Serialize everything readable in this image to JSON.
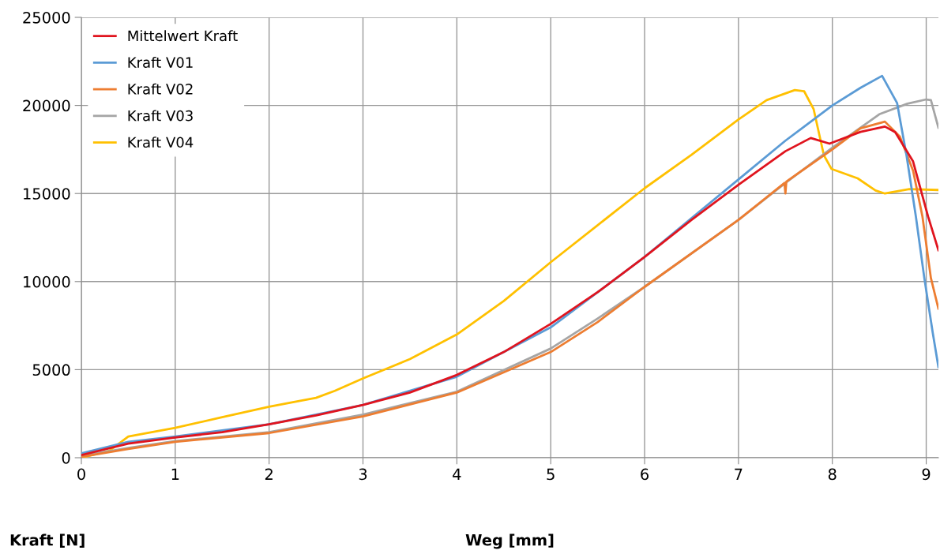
{
  "chart_data": {
    "type": "line",
    "xlabel": "Weg [mm]",
    "ylabel": "Kraft [N]",
    "xlim": [
      0,
      9.13
    ],
    "ylim": [
      0,
      25000
    ],
    "xticks": [
      0,
      1,
      2,
      3,
      4,
      5,
      6,
      7,
      8,
      9
    ],
    "yticks": [
      0,
      5000,
      10000,
      15000,
      20000,
      25000
    ],
    "grid": true,
    "legend": "top left",
    "marker": "none",
    "line_style": "solid",
    "series": [
      {
        "name": "Mittelwert Kraft",
        "color": "#e0141e",
        "x": [
          0,
          0.5,
          1,
          1.5,
          2,
          2.5,
          3,
          3.5,
          4,
          4.5,
          5,
          5.5,
          6,
          6.5,
          7,
          7.5,
          7.77,
          7.97,
          8.3,
          8.56,
          8.67,
          8.86,
          9.02,
          9.13
        ],
        "values": [
          150,
          800,
          1150,
          1450,
          1900,
          2400,
          3000,
          3700,
          4700,
          6000,
          7600,
          9400,
          11400,
          13500,
          15500,
          17400,
          18150,
          17830,
          18500,
          18800,
          18480,
          16820,
          13690,
          11780
        ]
      },
      {
        "name": "Kraft V01",
        "color": "#5b9bd5",
        "x": [
          0,
          0.5,
          1,
          2,
          3,
          4,
          5,
          6,
          7,
          7.5,
          8,
          8.3,
          8.53,
          8.69,
          8.79,
          8.89,
          8.98,
          9.07,
          9.13
        ],
        "values": [
          250,
          900,
          1200,
          1900,
          3000,
          4600,
          7400,
          11400,
          15800,
          18000,
          20000,
          21000,
          21680,
          20130,
          17170,
          13690,
          10200,
          7080,
          5150
        ]
      },
      {
        "name": "Kraft V02",
        "color": "#ed7d31",
        "x": [
          0,
          0.5,
          1,
          2,
          3,
          4,
          5,
          5.5,
          6,
          7,
          7.49,
          7.5,
          7.51,
          8,
          8.3,
          8.56,
          8.72,
          8.86,
          8.96,
          9.05,
          9.13
        ],
        "values": [
          50,
          500,
          900,
          1400,
          2350,
          3700,
          6000,
          7700,
          9700,
          13500,
          15600,
          15000,
          15680,
          17500,
          18700,
          19080,
          18220,
          16300,
          13690,
          10200,
          8470
        ]
      },
      {
        "name": "Kraft V03",
        "color": "#a5a5a5",
        "x": [
          0,
          0.5,
          1,
          2,
          3,
          4,
          5,
          5.5,
          6,
          7,
          7.5,
          8,
          8.5,
          8.8,
          9.0,
          9.05,
          9.13
        ],
        "values": [
          100,
          550,
          950,
          1450,
          2450,
          3750,
          6200,
          7900,
          9700,
          13500,
          15600,
          17600,
          19500,
          20100,
          20340,
          20300,
          18740
        ]
      },
      {
        "name": "Kraft V04",
        "color": "#ffc000",
        "x": [
          0,
          0.3,
          0.5,
          1,
          1.5,
          2,
          2.5,
          2.7,
          3,
          3.5,
          4,
          4.5,
          5,
          5.5,
          6,
          6.5,
          7,
          7.3,
          7.6,
          7.7,
          7.8,
          7.91,
          7.99,
          8.27,
          8.46,
          8.56,
          8.82,
          9.13
        ],
        "values": [
          0,
          400,
          1200,
          1700,
          2300,
          2900,
          3400,
          3800,
          4500,
          5600,
          7000,
          8900,
          11100,
          13200,
          15300,
          17200,
          19200,
          20300,
          20870,
          20800,
          19800,
          17170,
          16400,
          15860,
          15170,
          15000,
          15250,
          15200
        ]
      }
    ]
  }
}
